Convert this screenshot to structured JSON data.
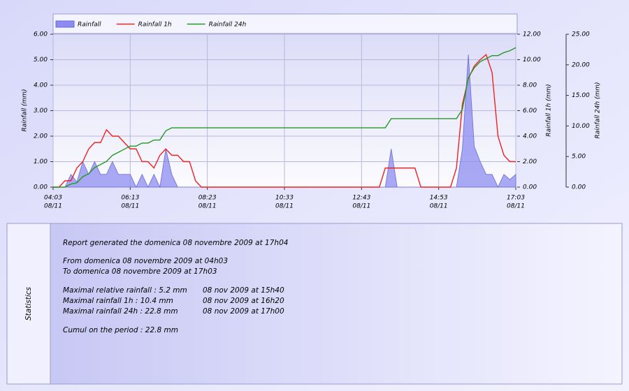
{
  "chart_data": {
    "type": "line",
    "legend": "top-left",
    "grid": true,
    "ylabel": "Rainfall  (mm)",
    "y2label": "Rainfall 1h  (mm)",
    "y3label": "Rainfall 24h  (mm)",
    "x": [
      "04:03",
      "04:13",
      "04:23",
      "04:33",
      "04:43",
      "04:53",
      "05:03",
      "05:13",
      "05:23",
      "05:33",
      "05:43",
      "05:53",
      "06:03",
      "06:13",
      "06:23",
      "06:33",
      "06:43",
      "06:53",
      "07:03",
      "07:13",
      "07:23",
      "07:33",
      "07:43",
      "07:53",
      "08:03",
      "08:13",
      "08:23",
      "08:33",
      "08:43",
      "08:53",
      "09:03",
      "09:13",
      "09:23",
      "09:33",
      "09:43",
      "09:53",
      "10:03",
      "10:13",
      "10:23",
      "10:33",
      "10:43",
      "10:53",
      "11:03",
      "11:13",
      "11:23",
      "11:33",
      "11:43",
      "11:53",
      "12:03",
      "12:13",
      "12:23",
      "12:33",
      "12:43",
      "12:53",
      "13:03",
      "13:13",
      "13:23",
      "13:33",
      "13:43",
      "13:53",
      "14:03",
      "14:13",
      "14:23",
      "14:33",
      "14:43",
      "14:53",
      "15:03",
      "15:13",
      "15:23",
      "15:33",
      "15:43",
      "15:53",
      "16:03",
      "16:13",
      "16:23",
      "16:33",
      "16:43",
      "16:53",
      "17:03"
    ],
    "xticks": [
      "04:03",
      "06:13",
      "08:23",
      "10:33",
      "12:43",
      "14:53",
      "17:03"
    ],
    "xtick_date": "08/11",
    "ylim": [
      0,
      6
    ],
    "yticks": [
      {
        "value": 0,
        "label": "0.00"
      },
      {
        "value": 1,
        "label": "1.00"
      },
      {
        "value": 2,
        "label": "2.00"
      },
      {
        "value": 3,
        "label": "3.00"
      },
      {
        "value": 4,
        "label": "4.00"
      },
      {
        "value": 5,
        "label": "5.00"
      },
      {
        "value": 6,
        "label": "6.00"
      }
    ],
    "y2lim": [
      0,
      12
    ],
    "y2ticks": [
      {
        "value": 0,
        "label": "0.00"
      },
      {
        "value": 2,
        "label": "2.00"
      },
      {
        "value": 4,
        "label": "4.00"
      },
      {
        "value": 6,
        "label": "6.00"
      },
      {
        "value": 8,
        "label": "8.00"
      },
      {
        "value": 10,
        "label": "10.00"
      },
      {
        "value": 12,
        "label": "12.00"
      }
    ],
    "y3lim": [
      0,
      25
    ],
    "y3ticks": [
      {
        "value": 0,
        "label": "0.00"
      },
      {
        "value": 5,
        "label": "5.00"
      },
      {
        "value": 10,
        "label": "10.00"
      },
      {
        "value": 15,
        "label": "15.00"
      },
      {
        "value": 20,
        "label": "20.00"
      },
      {
        "value": 25,
        "label": "25.00"
      }
    ],
    "series": [
      {
        "name": "Rainfall",
        "type": "area",
        "axis": "y",
        "color": "#8c8cf0",
        "values": [
          0,
          0,
          0,
          0.5,
          0.2,
          1,
          0.5,
          1,
          0.5,
          0.5,
          1,
          0.5,
          0.5,
          0.5,
          0,
          0.5,
          0,
          0.5,
          0,
          1.5,
          0.5,
          0,
          0,
          0,
          0,
          0,
          0,
          0,
          0,
          0,
          0,
          0,
          0,
          0,
          0,
          0,
          0,
          0,
          0,
          0,
          0,
          0,
          0,
          0,
          0,
          0,
          0,
          0,
          0,
          0,
          0,
          0,
          0,
          0,
          0,
          0,
          0,
          1.5,
          0,
          0,
          0,
          0,
          0,
          0,
          0,
          0,
          0,
          0,
          0,
          1.5,
          5.2,
          1.6,
          1,
          0.5,
          0.5,
          0,
          0.5,
          0.3,
          0.5
        ]
      },
      {
        "name": "Rainfall 1h",
        "type": "line",
        "axis": "y2",
        "color": "#ee2222",
        "values": [
          0,
          0,
          0.5,
          0.5,
          1.5,
          2,
          3,
          3.5,
          3.5,
          4.5,
          4,
          4,
          3.5,
          3,
          3,
          2,
          2,
          1.5,
          2.5,
          3,
          2.5,
          2.5,
          2,
          2,
          0.5,
          0,
          0,
          0,
          0,
          0,
          0,
          0,
          0,
          0,
          0,
          0,
          0,
          0,
          0,
          0,
          0,
          0,
          0,
          0,
          0,
          0,
          0,
          0,
          0,
          0,
          0,
          0,
          0,
          0,
          0,
          0,
          1.5,
          1.5,
          1.5,
          1.5,
          1.5,
          1.5,
          0,
          0,
          0,
          0,
          0,
          0,
          1.5,
          6.5,
          8.5,
          9.5,
          10,
          10.4,
          9,
          4,
          2.5,
          2,
          2
        ]
      },
      {
        "name": "Rainfall 24h",
        "type": "line",
        "axis": "y3",
        "color": "#229922",
        "values": [
          0,
          0,
          0,
          0.5,
          0.7,
          1.7,
          2.2,
          3.2,
          3.7,
          4.2,
          5.2,
          5.7,
          6.2,
          6.7,
          6.7,
          7.2,
          7.2,
          7.7,
          7.7,
          9.2,
          9.7,
          9.7,
          9.7,
          9.7,
          9.7,
          9.7,
          9.7,
          9.7,
          9.7,
          9.7,
          9.7,
          9.7,
          9.7,
          9.7,
          9.7,
          9.7,
          9.7,
          9.7,
          9.7,
          9.7,
          9.7,
          9.7,
          9.7,
          9.7,
          9.7,
          9.7,
          9.7,
          9.7,
          9.7,
          9.7,
          9.7,
          9.7,
          9.7,
          9.7,
          9.7,
          9.7,
          9.7,
          11.2,
          11.2,
          11.2,
          11.2,
          11.2,
          11.2,
          11.2,
          11.2,
          11.2,
          11.2,
          11.2,
          11.2,
          12.7,
          17.9,
          19.5,
          20.5,
          21.0,
          21.5,
          21.5,
          22.0,
          22.3,
          22.8
        ]
      }
    ]
  },
  "statistics": {
    "title": "Statistics",
    "report": "Report generated the domenica 08 novembre 2009 at 17h04",
    "from": "From domenica 08 novembre 2009 at 04h03",
    "to": "To domenica 08 novembre 2009 at 17h03",
    "maxima": [
      {
        "label": "Maximal relative rainfall : 5.2 mm",
        "date": "08 nov 2009 at 15h40"
      },
      {
        "label": "Maximal rainfall 1h  : 10.4 mm",
        "date": "08 nov 2009 at 16h20"
      },
      {
        "label": "Maximal rainfall 24h : 22.8 mm",
        "date": "08 nov 2009 at 17h00"
      }
    ],
    "cumul": "Cumul on the period : 22.8 mm"
  }
}
